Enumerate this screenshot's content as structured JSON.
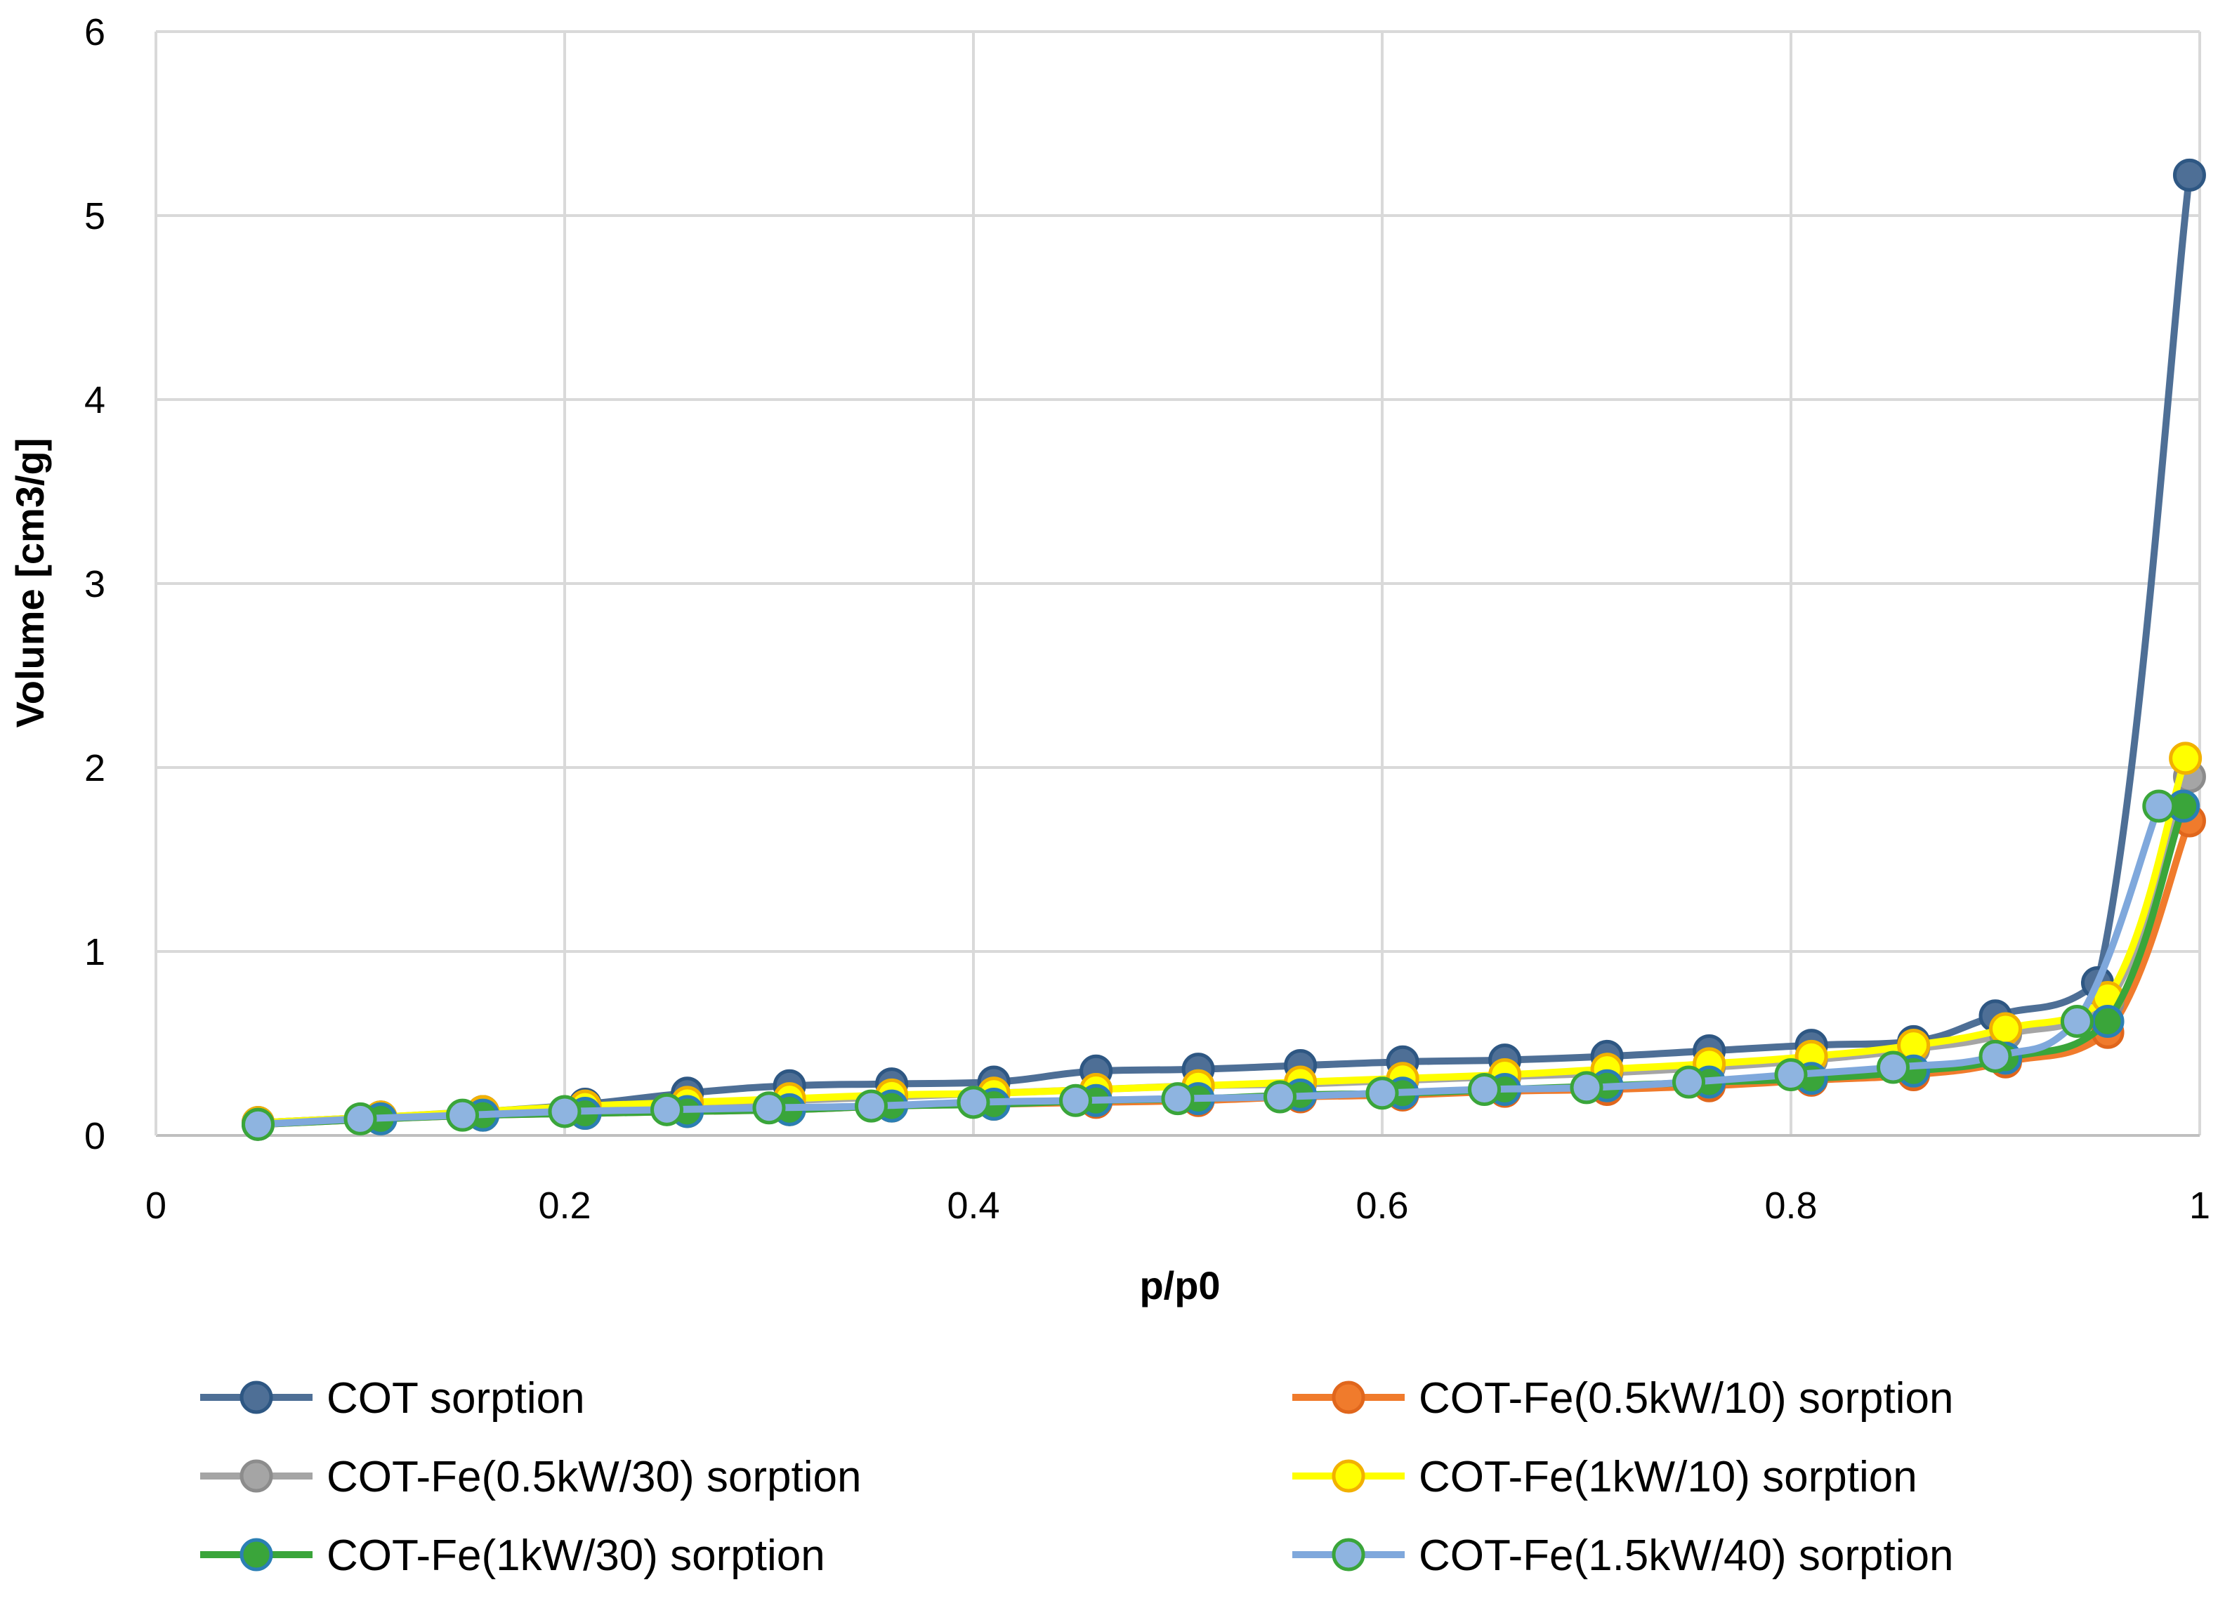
{
  "chart_data": {
    "type": "line",
    "title": "",
    "xlabel": "p/p0",
    "ylabel": "Volume [cm3/g]",
    "xlim": [
      0,
      1
    ],
    "ylim": [
      0,
      6
    ],
    "xticks": [
      0,
      0.2,
      0.4,
      0.6,
      0.8,
      1
    ],
    "xtick_labels": [
      "0",
      "0.2",
      "0.4",
      "0.6",
      "0.8",
      "1"
    ],
    "yticks": [
      0,
      1,
      2,
      3,
      4,
      5,
      6
    ],
    "ytick_labels": [
      "0",
      "1",
      "2",
      "3",
      "4",
      "5",
      "6"
    ],
    "grid": true,
    "legend_position": "bottom",
    "series": [
      {
        "name": "COT sorption",
        "color": "#4e6f96",
        "marker_fill": "#4e6f96",
        "marker_edge": "#2e5783",
        "x": [
          0.05,
          0.11,
          0.16,
          0.21,
          0.26,
          0.31,
          0.36,
          0.41,
          0.46,
          0.51,
          0.56,
          0.61,
          0.66,
          0.71,
          0.76,
          0.81,
          0.86,
          0.9,
          0.95,
          0.995
        ],
        "y": [
          0.07,
          0.1,
          0.13,
          0.17,
          0.23,
          0.27,
          0.28,
          0.29,
          0.35,
          0.36,
          0.38,
          0.4,
          0.41,
          0.43,
          0.46,
          0.49,
          0.51,
          0.65,
          0.83,
          5.22
        ]
      },
      {
        "name": "COT-Fe(0.5kW/10) sorption",
        "color": "#f07b2c",
        "marker_fill": "#f07b2c",
        "marker_edge": "#e0661c",
        "x": [
          0.05,
          0.11,
          0.16,
          0.21,
          0.26,
          0.31,
          0.36,
          0.41,
          0.46,
          0.51,
          0.56,
          0.61,
          0.66,
          0.71,
          0.76,
          0.81,
          0.86,
          0.905,
          0.955,
          0.995
        ],
        "y": [
          0.06,
          0.09,
          0.11,
          0.12,
          0.13,
          0.14,
          0.16,
          0.17,
          0.18,
          0.19,
          0.21,
          0.22,
          0.24,
          0.25,
          0.27,
          0.3,
          0.33,
          0.4,
          0.56,
          1.71
        ]
      },
      {
        "name": "COT-Fe(0.5kW/30) sorption",
        "color": "#a5a5a5",
        "marker_fill": "#a5a5a5",
        "marker_edge": "#8c8c8c",
        "x": [
          0.05,
          0.11,
          0.16,
          0.21,
          0.26,
          0.31,
          0.36,
          0.41,
          0.46,
          0.51,
          0.56,
          0.61,
          0.66,
          0.71,
          0.76,
          0.81,
          0.86,
          0.905,
          0.955,
          0.995
        ],
        "y": [
          0.07,
          0.1,
          0.13,
          0.15,
          0.17,
          0.19,
          0.21,
          0.23,
          0.25,
          0.27,
          0.28,
          0.3,
          0.32,
          0.34,
          0.37,
          0.41,
          0.47,
          0.55,
          0.72,
          1.95
        ]
      },
      {
        "name": "COT-Fe(1kW/10) sorption",
        "color": "#ffff00",
        "marker_fill": "#ffff00",
        "marker_edge": "#f2b100",
        "x": [
          0.05,
          0.11,
          0.16,
          0.21,
          0.26,
          0.31,
          0.36,
          0.41,
          0.46,
          0.51,
          0.56,
          0.61,
          0.66,
          0.71,
          0.76,
          0.81,
          0.86,
          0.905,
          0.955,
          0.993
        ],
        "y": [
          0.07,
          0.1,
          0.13,
          0.16,
          0.18,
          0.2,
          0.22,
          0.23,
          0.25,
          0.27,
          0.29,
          0.31,
          0.33,
          0.36,
          0.39,
          0.43,
          0.49,
          0.58,
          0.75,
          2.05
        ]
      },
      {
        "name": "COT-Fe(1kW/30) sorption",
        "color": "#3aa53a",
        "marker_fill": "#3aa53a",
        "marker_edge": "#2b7fb4",
        "x": [
          0.05,
          0.11,
          0.16,
          0.21,
          0.26,
          0.31,
          0.36,
          0.41,
          0.46,
          0.51,
          0.56,
          0.61,
          0.66,
          0.71,
          0.76,
          0.81,
          0.86,
          0.905,
          0.955,
          0.992
        ],
        "y": [
          0.06,
          0.09,
          0.11,
          0.12,
          0.13,
          0.14,
          0.16,
          0.17,
          0.19,
          0.2,
          0.22,
          0.23,
          0.25,
          0.27,
          0.29,
          0.31,
          0.35,
          0.42,
          0.62,
          1.79
        ]
      },
      {
        "name": "COT-Fe(1.5kW/40) sorption",
        "color": "#7fa8dc",
        "marker_fill": "#8eb4e0",
        "marker_edge": "#3aa53a",
        "x": [
          0.05,
          0.1,
          0.15,
          0.2,
          0.25,
          0.3,
          0.35,
          0.4,
          0.45,
          0.5,
          0.55,
          0.6,
          0.65,
          0.7,
          0.75,
          0.8,
          0.85,
          0.9,
          0.94,
          0.98
        ],
        "y": [
          0.06,
          0.09,
          0.11,
          0.13,
          0.14,
          0.15,
          0.16,
          0.18,
          0.19,
          0.2,
          0.21,
          0.23,
          0.25,
          0.26,
          0.29,
          0.33,
          0.37,
          0.43,
          0.62,
          1.79
        ]
      }
    ]
  }
}
